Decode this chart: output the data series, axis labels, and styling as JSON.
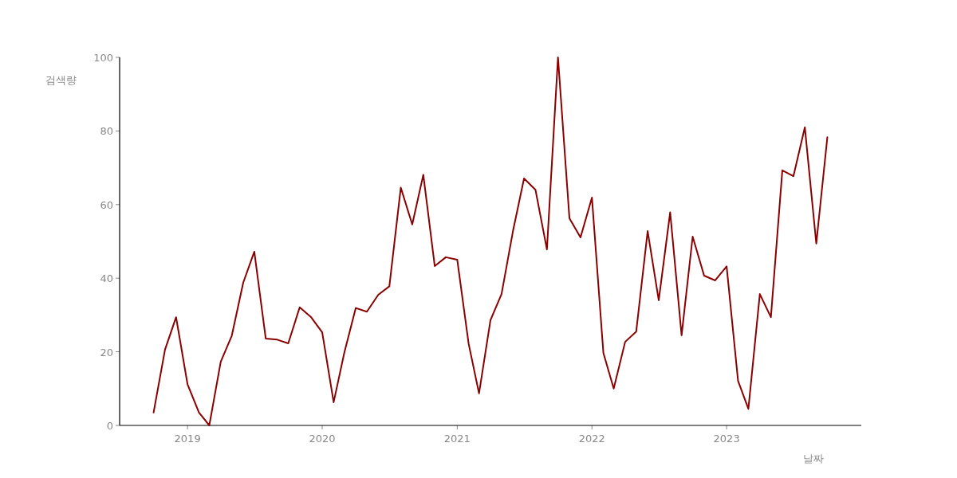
{
  "chart_data": {
    "type": "line",
    "xlabel": "날짜",
    "ylabel": "검색량",
    "x": [
      "2018-10",
      "2018-11",
      "2018-12",
      "2019-01",
      "2019-02",
      "2019-03",
      "2019-04",
      "2019-05",
      "2019-06",
      "2019-07",
      "2019-08",
      "2019-09",
      "2019-10",
      "2019-11",
      "2019-12",
      "2020-01",
      "2020-02",
      "2020-03",
      "2020-04",
      "2020-05",
      "2020-06",
      "2020-07",
      "2020-08",
      "2020-09",
      "2020-10",
      "2020-11",
      "2020-12",
      "2021-01",
      "2021-02",
      "2021-03",
      "2021-04",
      "2021-05",
      "2021-06",
      "2021-07",
      "2021-08",
      "2021-09",
      "2021-10",
      "2021-11",
      "2021-12",
      "2022-01",
      "2022-02",
      "2022-03",
      "2022-04",
      "2022-05",
      "2022-06",
      "2022-07",
      "2022-08",
      "2022-09",
      "2022-10",
      "2022-11",
      "2022-12",
      "2023-01",
      "2023-02",
      "2023-03",
      "2023-04",
      "2023-05",
      "2023-06",
      "2023-07",
      "2023-08",
      "2023-09",
      "2023-10"
    ],
    "series": [
      {
        "color": "#8b0000",
        "values": [
          3.5,
          20.6,
          29.4,
          11.2,
          3.5,
          0,
          17.3,
          24.4,
          38.8,
          47.2,
          23.6,
          23.3,
          22.3,
          32.1,
          29.5,
          25.3,
          6.3,
          19.8,
          31.9,
          30.9,
          35.5,
          37.8,
          64.6,
          54.6,
          68.1,
          43.3,
          45.7,
          45.0,
          22.1,
          8.7,
          28.6,
          35.7,
          52.8,
          67.1,
          64.0,
          47.8,
          100,
          56.3,
          51.1,
          61.9,
          19.7,
          10.0,
          22.7,
          25.5,
          52.8,
          34.0,
          57.9,
          24.5,
          51.3,
          40.7,
          39.4,
          43.2,
          12.1,
          4.5,
          35.7,
          29.4,
          69.3,
          67.7,
          81.0,
          49.4,
          78.3
        ]
      }
    ],
    "xlim": [
      "2018-07",
      "2024-01"
    ],
    "xticks": [
      "2019",
      "2020",
      "2021",
      "2022",
      "2023"
    ],
    "ylim": [
      0,
      100
    ],
    "yticks": [
      0,
      20,
      40,
      60,
      80,
      100
    ],
    "grid": false,
    "marker": "none",
    "line_style": "solid"
  }
}
